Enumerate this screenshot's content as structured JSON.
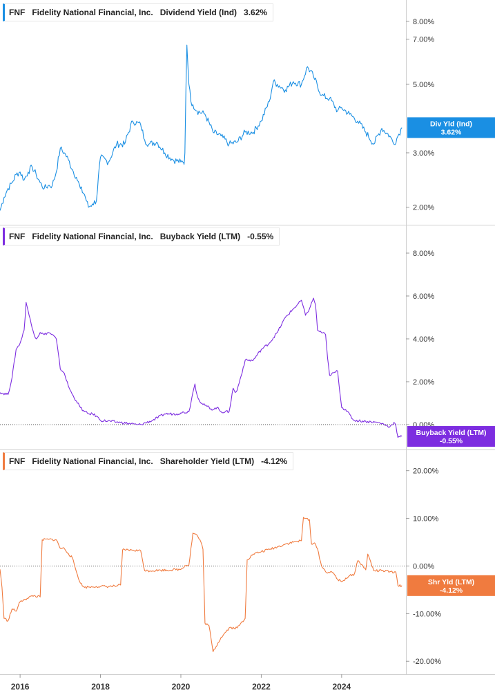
{
  "company": {
    "ticker": "FNF",
    "name": "Fidelity National Financial, Inc."
  },
  "chart_data": [
    {
      "type": "line",
      "title": "Dividend Yield (Ind)",
      "current_value": "3.62%",
      "badge_label": "Div Yld (Ind)",
      "color": "#1a8fe3",
      "yscale": "log",
      "ylim": [
        1.8,
        9.0
      ],
      "yticks": [
        "8.00%",
        "7.00%",
        "5.00%",
        "3.00%",
        "2.00%"
      ],
      "ytick_values": [
        8.0,
        7.0,
        5.0,
        3.0,
        2.0
      ],
      "x": [
        2015.5,
        2015.6,
        2015.7,
        2015.8,
        2015.9,
        2016.0,
        2016.1,
        2016.2,
        2016.3,
        2016.4,
        2016.5,
        2016.6,
        2016.7,
        2016.8,
        2016.9,
        2017.0,
        2017.1,
        2017.2,
        2017.3,
        2017.4,
        2017.5,
        2017.6,
        2017.7,
        2017.8,
        2017.9,
        2018.0,
        2018.2,
        2018.4,
        2018.6,
        2018.8,
        2019.0,
        2019.1,
        2019.2,
        2019.4,
        2019.6,
        2019.8,
        2020.0,
        2020.05,
        2020.08,
        2020.1,
        2020.15,
        2020.2,
        2020.25,
        2020.3,
        2020.4,
        2020.6,
        2020.8,
        2021.0,
        2021.2,
        2021.4,
        2021.6,
        2021.8,
        2022.0,
        2022.2,
        2022.3,
        2022.4,
        2022.6,
        2022.8,
        2023.0,
        2023.15,
        2023.3,
        2023.5,
        2023.7,
        2023.9,
        2024.0,
        2024.2,
        2024.4,
        2024.6,
        2024.8,
        2025.0,
        2025.2,
        2025.3,
        2025.4,
        2025.5
      ],
      "values": [
        1.95,
        2.15,
        2.3,
        2.4,
        2.55,
        2.6,
        2.45,
        2.6,
        2.7,
        2.55,
        2.4,
        2.3,
        2.35,
        2.35,
        2.6,
        3.1,
        3.0,
        2.85,
        2.65,
        2.5,
        2.3,
        2.2,
        2.0,
        2.05,
        2.1,
        2.9,
        2.8,
        3.2,
        3.2,
        3.8,
        3.7,
        3.3,
        3.2,
        3.25,
        3.0,
        2.85,
        2.8,
        2.8,
        2.75,
        3.0,
        6.7,
        5.0,
        4.4,
        4.3,
        4.1,
        4.0,
        3.5,
        3.4,
        3.2,
        3.25,
        3.5,
        3.5,
        3.8,
        4.4,
        5.1,
        5.0,
        4.8,
        5.1,
        5.0,
        5.7,
        5.3,
        4.6,
        4.5,
        4.1,
        4.2,
        4.0,
        3.8,
        3.5,
        3.2,
        3.6,
        3.4,
        3.2,
        3.4,
        3.62
      ]
    },
    {
      "type": "line",
      "title": "Buyback Yield (LTM)",
      "current_value": "-0.55%",
      "badge_label": "Buyback Yield (LTM)",
      "color": "#7d2de0",
      "yscale": "linear",
      "ylim": [
        -1.0,
        9.0
      ],
      "yticks": [
        "8.00%",
        "6.00%",
        "4.00%",
        "2.00%",
        "0.00%"
      ],
      "ytick_values": [
        8.0,
        6.0,
        4.0,
        2.0,
        0.0
      ],
      "x": [
        2015.5,
        2015.7,
        2015.8,
        2015.9,
        2016.0,
        2016.1,
        2016.15,
        2016.2,
        2016.3,
        2016.4,
        2016.5,
        2016.6,
        2016.7,
        2016.8,
        2016.9,
        2017.0,
        2017.05,
        2017.1,
        2017.2,
        2017.3,
        2017.4,
        2017.5,
        2017.6,
        2017.7,
        2017.8,
        2017.9,
        2018.0,
        2018.5,
        2018.9,
        2019.0,
        2019.3,
        2019.6,
        2019.9,
        2020.0,
        2020.2,
        2020.3,
        2020.35,
        2020.4,
        2020.5,
        2020.6,
        2020.8,
        2020.9,
        2021.0,
        2021.2,
        2021.3,
        2021.35,
        2021.4,
        2021.6,
        2021.8,
        2022.0,
        2022.2,
        2022.4,
        2022.6,
        2022.8,
        2023.0,
        2023.1,
        2023.2,
        2023.3,
        2023.35,
        2023.4,
        2023.6,
        2023.65,
        2023.7,
        2023.9,
        2024.0,
        2024.1,
        2024.3,
        2024.6,
        2024.9,
        2025.0,
        2025.2,
        2025.3,
        2025.35,
        2025.4,
        2025.5
      ],
      "values": [
        1.5,
        1.4,
        2.2,
        3.5,
        3.8,
        4.4,
        5.7,
        5.3,
        4.5,
        4.0,
        4.3,
        4.2,
        4.3,
        4.2,
        4.0,
        2.6,
        2.5,
        2.4,
        1.8,
        1.4,
        1.1,
        0.8,
        0.6,
        0.5,
        0.5,
        0.4,
        0.2,
        0.1,
        0.0,
        0.0,
        0.2,
        0.5,
        0.5,
        0.55,
        0.6,
        1.5,
        1.9,
        1.4,
        1.0,
        0.9,
        0.7,
        0.8,
        0.6,
        0.6,
        1.7,
        1.5,
        1.6,
        3.0,
        3.0,
        3.5,
        3.8,
        4.3,
        5.0,
        5.4,
        5.8,
        5.1,
        5.4,
        5.9,
        5.6,
        4.4,
        4.2,
        3.1,
        2.3,
        2.5,
        0.8,
        0.7,
        0.2,
        0.15,
        0.1,
        0.05,
        -0.1,
        0.1,
        -0.05,
        -0.6,
        -0.55
      ]
    },
    {
      "type": "line",
      "title": "Shareholder Yield (LTM)",
      "current_value": "-4.12%",
      "badge_label": "Shr Yld (LTM)",
      "color": "#f07b3f",
      "yscale": "linear",
      "ylim": [
        -22.0,
        23.0
      ],
      "yticks": [
        "20.00%",
        "10.00%",
        "0.00%",
        "-10.00%",
        "-20.00%"
      ],
      "ytick_values": [
        20.0,
        10.0,
        0.0,
        -10.0,
        -20.0
      ],
      "x": [
        2015.5,
        2015.55,
        2015.6,
        2015.7,
        2015.8,
        2015.9,
        2016.0,
        2016.1,
        2016.2,
        2016.3,
        2016.5,
        2016.55,
        2016.7,
        2016.9,
        2017.0,
        2017.1,
        2017.2,
        2017.3,
        2017.4,
        2017.5,
        2017.6,
        2017.7,
        2017.8,
        2017.9,
        2018.0,
        2018.2,
        2018.4,
        2018.5,
        2018.55,
        2018.8,
        2019.0,
        2019.1,
        2019.5,
        2019.8,
        2020.0,
        2020.1,
        2020.2,
        2020.3,
        2020.4,
        2020.5,
        2020.55,
        2020.6,
        2020.7,
        2020.8,
        2021.0,
        2021.2,
        2021.4,
        2021.6,
        2021.65,
        2021.8,
        2022.0,
        2022.2,
        2022.4,
        2022.6,
        2022.8,
        2023.0,
        2023.05,
        2023.1,
        2023.2,
        2023.25,
        2023.35,
        2023.4,
        2023.5,
        2023.6,
        2023.8,
        2023.9,
        2024.0,
        2024.2,
        2024.3,
        2024.4,
        2024.5,
        2024.6,
        2024.65,
        2024.8,
        2025.0,
        2025.2,
        2025.3,
        2025.35,
        2025.4,
        2025.5
      ],
      "values": [
        -0.7,
        -4.5,
        -11.0,
        -11.5,
        -9.0,
        -9.5,
        -7.5,
        -7.0,
        -6.8,
        -6.2,
        -6.5,
        5.5,
        5.6,
        5.5,
        3.7,
        3.7,
        2.6,
        1.7,
        -1.2,
        -3.6,
        -4.5,
        -4.4,
        -4.4,
        -4.3,
        -4.3,
        -4.3,
        -4.2,
        -4.0,
        3.4,
        3.3,
        3.2,
        -1.0,
        -0.9,
        -0.8,
        -0.7,
        0.1,
        0.2,
        6.9,
        6.5,
        5.0,
        3.5,
        -12.0,
        -12.5,
        -18.0,
        -15.0,
        -13.0,
        -13.0,
        -11.0,
        1.3,
        2.5,
        3.0,
        3.5,
        4.0,
        4.6,
        5.0,
        5.3,
        10.2,
        10.0,
        9.7,
        4.6,
        4.6,
        3.6,
        0.0,
        -1.2,
        -1.5,
        -2.8,
        -3.3,
        -2.0,
        -2.0,
        1.1,
        0.3,
        -0.8,
        2.5,
        -1.0,
        -1.0,
        -1.2,
        -1.4,
        -1.3,
        -4.1,
        -4.12
      ]
    }
  ],
  "x_axis": {
    "range": [
      2015.5,
      2025.6
    ],
    "tick_labels": [
      "2016",
      "2018",
      "2020",
      "2022",
      "2024"
    ],
    "tick_values": [
      2016,
      2018,
      2020,
      2022,
      2024
    ]
  }
}
